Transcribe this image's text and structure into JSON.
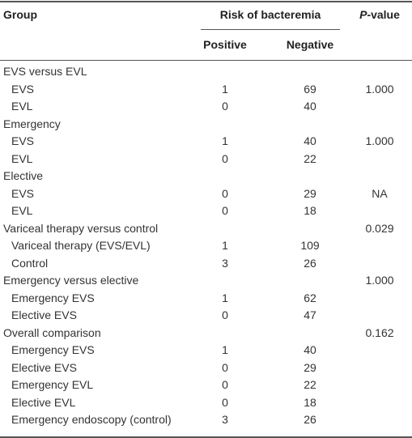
{
  "header": {
    "group": "Group",
    "risk": "Risk of bacteremia",
    "p_value": "P-value",
    "positive": "Positive",
    "negative": "Negative"
  },
  "groups": [
    {
      "title": "EVS versus EVL",
      "rows": [
        {
          "label": "EVS",
          "positive": 1,
          "negative": 69,
          "p_value": "1.000"
        },
        {
          "label": "EVL",
          "positive": 0,
          "negative": 40
        }
      ]
    },
    {
      "title": "Emergency",
      "rows": [
        {
          "label": "EVS",
          "positive": 1,
          "negative": 40,
          "p_value": "1.000"
        },
        {
          "label": "EVL",
          "positive": 0,
          "negative": 22
        }
      ]
    },
    {
      "title": "Elective",
      "rows": [
        {
          "label": "EVS",
          "positive": 0,
          "negative": 29,
          "p_value": "NA"
        },
        {
          "label": "EVL",
          "positive": 0,
          "negative": 18
        }
      ]
    },
    {
      "title": "Variceal therapy versus control",
      "p_value": "0.029",
      "rows": [
        {
          "label": "Variceal therapy (EVS/EVL)",
          "positive": 1,
          "negative": 109
        },
        {
          "label": "Control",
          "positive": 3,
          "negative": 26
        }
      ]
    },
    {
      "title": "Emergency versus elective",
      "p_value": "1.000",
      "rows": [
        {
          "label": "Emergency EVS",
          "positive": 1,
          "negative": 62
        },
        {
          "label": "Elective EVS",
          "positive": 0,
          "negative": 47
        }
      ]
    },
    {
      "title": "Overall comparison",
      "p_value": "0.162",
      "rows": [
        {
          "label": "Emergency EVS",
          "positive": 1,
          "negative": 40
        },
        {
          "label": "Elective EVS",
          "positive": 0,
          "negative": 29
        },
        {
          "label": "Emergency EVL",
          "positive": 0,
          "negative": 22
        },
        {
          "label": "Elective EVL",
          "positive": 0,
          "negative": 18
        },
        {
          "label": "Emergency endoscopy (control)",
          "positive": 3,
          "negative": 26
        }
      ]
    }
  ]
}
